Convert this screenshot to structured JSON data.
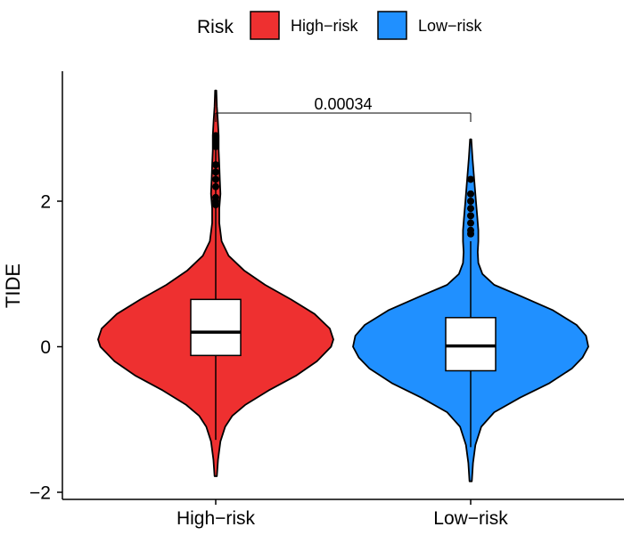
{
  "chart_data": {
    "type": "violin",
    "xlabel": "",
    "ylabel": "TIDE",
    "ylim": [
      -2.05,
      3.75
    ],
    "yticks": [
      -2,
      0,
      2
    ],
    "ytick_labels": [
      "−2",
      "0",
      "2"
    ],
    "categories": [
      "High−risk",
      "Low−risk"
    ],
    "legend": {
      "title": "Risk",
      "position": "top",
      "entries": [
        {
          "label": "High−risk",
          "color": "#EE3030"
        },
        {
          "label": "Low−risk",
          "color": "#2090FF"
        }
      ]
    },
    "annotation": {
      "text": "0.00034",
      "between": [
        "High−risk",
        "Low−risk"
      ],
      "y": 3.2
    },
    "groups": [
      {
        "name": "High−risk",
        "color": "#EE3030",
        "box": {
          "q1": -0.12,
          "median": 0.2,
          "q3": 0.65,
          "whisker_low": -1.28,
          "whisker_high": 2.9
        },
        "range": [
          -1.78,
          3.52
        ],
        "outliers": [
          2.9,
          2.85,
          2.8,
          2.75,
          2.5,
          2.4,
          2.3,
          2.2,
          2.05,
          2.0,
          1.95
        ],
        "density": [
          [
            -1.78,
            0.01
          ],
          [
            -1.55,
            0.02
          ],
          [
            -1.3,
            0.04
          ],
          [
            -1.1,
            0.08
          ],
          [
            -0.95,
            0.14
          ],
          [
            -0.8,
            0.25
          ],
          [
            -0.6,
            0.45
          ],
          [
            -0.4,
            0.68
          ],
          [
            -0.2,
            0.86
          ],
          [
            0.0,
            0.98
          ],
          [
            0.1,
            1.0
          ],
          [
            0.25,
            0.97
          ],
          [
            0.45,
            0.84
          ],
          [
            0.65,
            0.64
          ],
          [
            0.85,
            0.42
          ],
          [
            1.05,
            0.24
          ],
          [
            1.25,
            0.11
          ],
          [
            1.45,
            0.05
          ],
          [
            1.7,
            0.03
          ],
          [
            1.9,
            0.03
          ],
          [
            2.1,
            0.04
          ],
          [
            2.3,
            0.035
          ],
          [
            2.5,
            0.03
          ],
          [
            2.7,
            0.025
          ],
          [
            2.9,
            0.025
          ],
          [
            3.1,
            0.018
          ],
          [
            3.3,
            0.01
          ],
          [
            3.52,
            0.005
          ]
        ]
      },
      {
        "name": "Low−risk",
        "color": "#2090FF",
        "box": {
          "q1": -0.33,
          "median": 0.01,
          "q3": 0.4,
          "whisker_low": -1.38,
          "whisker_high": 1.45
        },
        "range": [
          -1.85,
          2.85
        ],
        "outliers": [
          1.55,
          1.6,
          1.7,
          1.8,
          1.9,
          2.0,
          2.1,
          2.3
        ],
        "density": [
          [
            -1.85,
            0.01
          ],
          [
            -1.6,
            0.02
          ],
          [
            -1.35,
            0.04
          ],
          [
            -1.1,
            0.09
          ],
          [
            -0.9,
            0.2
          ],
          [
            -0.7,
            0.42
          ],
          [
            -0.5,
            0.67
          ],
          [
            -0.3,
            0.86
          ],
          [
            -0.15,
            0.95
          ],
          [
            0.0,
            1.0
          ],
          [
            0.15,
            0.98
          ],
          [
            0.3,
            0.9
          ],
          [
            0.5,
            0.7
          ],
          [
            0.7,
            0.42
          ],
          [
            0.85,
            0.2
          ],
          [
            1.0,
            0.1
          ],
          [
            1.15,
            0.065
          ],
          [
            1.3,
            0.06
          ],
          [
            1.45,
            0.065
          ],
          [
            1.6,
            0.065
          ],
          [
            1.8,
            0.055
          ],
          [
            2.0,
            0.045
          ],
          [
            2.2,
            0.035
          ],
          [
            2.4,
            0.025
          ],
          [
            2.6,
            0.015
          ],
          [
            2.85,
            0.005
          ]
        ]
      }
    ]
  }
}
